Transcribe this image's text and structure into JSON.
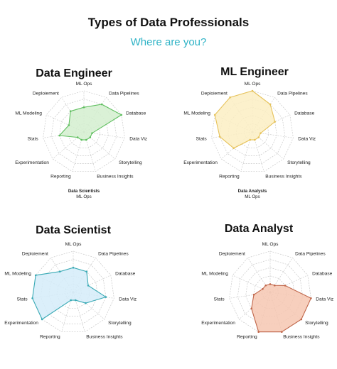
{
  "header": {
    "title": "Types of Data Professionals",
    "subtitle": "Where are you?"
  },
  "chart_data": [
    {
      "type": "radar",
      "title": "Data Engineer",
      "axes": [
        "ML Ops",
        "Data Pipelines",
        "Database",
        "Data Viz",
        "Storytelling",
        "Business Insights",
        "Reporting",
        "Experimentation",
        "Stats",
        "ML Modeling",
        "Deploiement"
      ],
      "range": [
        0,
        5
      ],
      "series": [
        {
          "values": [
            3,
            4,
            5,
            1,
            1,
            1,
            1,
            1,
            3,
            2,
            3
          ]
        }
      ],
      "color": "#5fbf5f",
      "fill": "#d3efcf",
      "caption": [
        "Data Scientists",
        "ML Ops"
      ]
    },
    {
      "type": "radar",
      "title": "ML Engineer",
      "axes": [
        "ML Ops",
        "Data Pipelines",
        "Database",
        "Data Viz",
        "Storytelling",
        "Business Insights",
        "Reporting",
        "Experimentation",
        "Stats",
        "ML Modeling",
        "Deploiement"
      ],
      "range": [
        0,
        5
      ],
      "series": [
        {
          "values": [
            5,
            4,
            3,
            1,
            1,
            1,
            1,
            3,
            4,
            5,
            5
          ]
        }
      ],
      "color": "#e6c25a",
      "fill": "#fbeec3",
      "caption": [
        "Data Analysts",
        "ML Ops"
      ]
    },
    {
      "type": "radar",
      "title": "Data Scientist",
      "axes": [
        "ML Ops",
        "Data Pipelines",
        "Database",
        "Data Viz",
        "Storytelling",
        "Business Insights",
        "Reporting",
        "Experimentation",
        "Stats",
        "ML Modeling",
        "Deploiement"
      ],
      "range": [
        0,
        5
      ],
      "series": [
        {
          "values": [
            3,
            3,
            2,
            4,
            2,
            1,
            1,
            5,
            5,
            5,
            3
          ]
        }
      ],
      "color": "#3aaab5",
      "fill": "#d5ecf9"
    },
    {
      "type": "radar",
      "title": "Data Analyst",
      "axes": [
        "ML Ops",
        "Data Pipelines",
        "Database",
        "Data Viz",
        "Storytelling",
        "Business Insights",
        "Reporting",
        "Experimentation",
        "Stats",
        "ML Modeling",
        "Deploiement"
      ],
      "range": [
        0,
        5
      ],
      "series": [
        {
          "values": [
            1,
            1,
            2,
            5,
            5,
            5,
            5,
            3,
            2,
            1,
            1
          ]
        }
      ],
      "color": "#c0664a",
      "fill": "#f6c7b2"
    }
  ]
}
